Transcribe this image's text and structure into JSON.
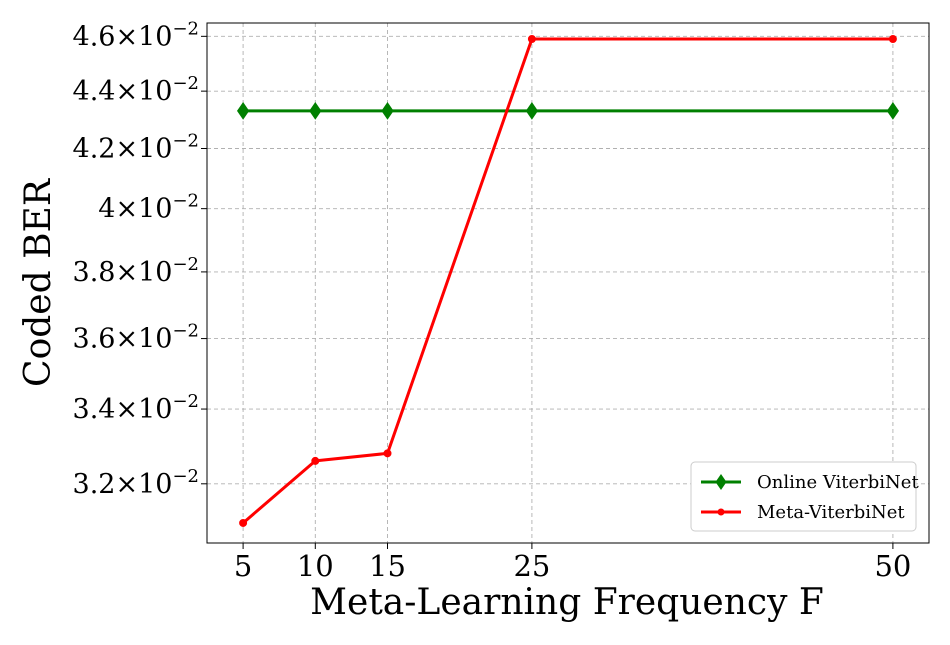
{
  "chart_data": {
    "type": "line",
    "xlabel": "Meta-Learning Frequency F",
    "ylabel": "Coded BER",
    "y_scale": "log",
    "grid": true,
    "grid_style": "dashed",
    "legend_position": "lower-right",
    "x": [
      5,
      10,
      15,
      25,
      50
    ],
    "xlim": [
      2.5,
      52.5
    ],
    "ylim": [
      0.0305,
      0.0465
    ],
    "x_ticks": [
      5,
      10,
      15,
      25,
      50
    ],
    "x_tick_labels": [
      "5",
      "10",
      "15",
      "25",
      "50"
    ],
    "y_ticks": [
      {
        "value": 0.032,
        "mantissa": "3.2",
        "base": "×10",
        "exp": "−2"
      },
      {
        "value": 0.034,
        "mantissa": "3.4",
        "base": "×10",
        "exp": "−2"
      },
      {
        "value": 0.036,
        "mantissa": "3.6",
        "base": "×10",
        "exp": "−2"
      },
      {
        "value": 0.038,
        "mantissa": "3.8",
        "base": "×10",
        "exp": "−2"
      },
      {
        "value": 0.04,
        "mantissa": "4",
        "base": "×10",
        "exp": "−2"
      },
      {
        "value": 0.042,
        "mantissa": "4.2",
        "base": "×10",
        "exp": "−2"
      },
      {
        "value": 0.044,
        "mantissa": "4.4",
        "base": "×10",
        "exp": "−2"
      },
      {
        "value": 0.046,
        "mantissa": "4.6",
        "base": "×10",
        "exp": "−2"
      }
    ],
    "series": [
      {
        "name": "Online ViterbiNet",
        "color": "#008000",
        "marker": "diamond",
        "values": [
          0.0433,
          0.0433,
          0.0433,
          0.0433,
          0.0433
        ]
      },
      {
        "name": "Meta-ViterbiNet",
        "color": "#ff0000",
        "marker": "circle",
        "values": [
          0.031,
          0.0326,
          0.0328,
          0.0459,
          0.0459
        ]
      }
    ]
  }
}
